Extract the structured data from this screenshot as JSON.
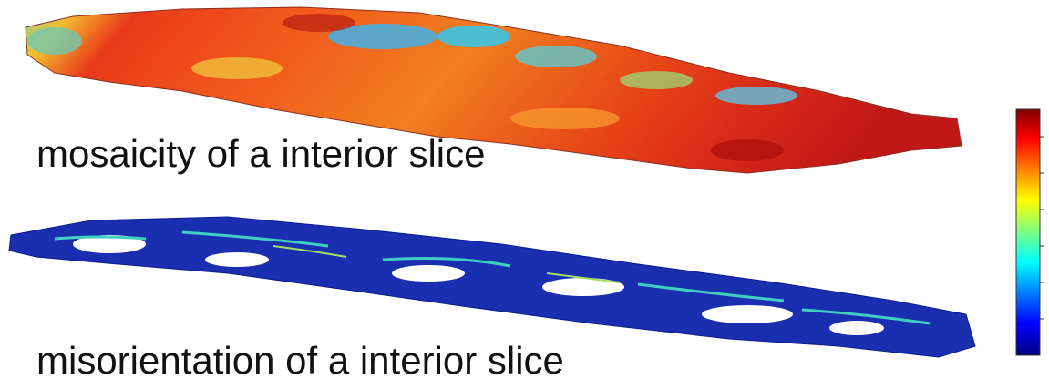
{
  "panels": [
    {
      "label": "mosaicity of a interior slice"
    },
    {
      "label": "misorientation of a interior slice"
    }
  ]
}
